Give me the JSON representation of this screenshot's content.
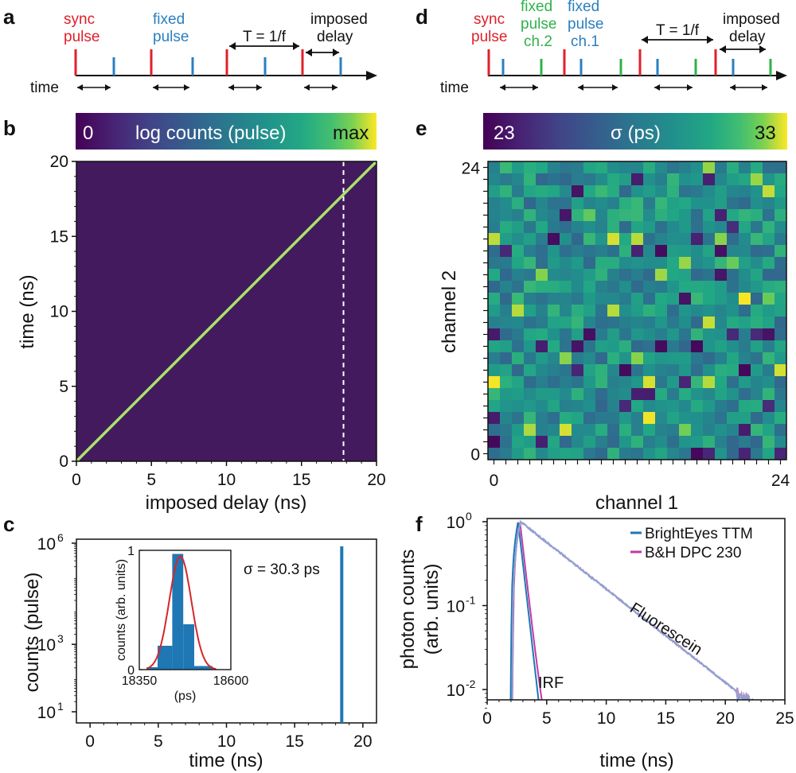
{
  "panel_labels": {
    "a": "a",
    "b": "b",
    "c": "c",
    "d": "d",
    "e": "e",
    "f": "f"
  },
  "colors": {
    "sync": "#e0202a",
    "fixed": "#2a7fbf",
    "fixed_ch2": "#2eb24a",
    "fixed_ch1": "#2a7fbf",
    "heatmap_bg": "#441a5e",
    "trace": "#a8e36a",
    "hist": "#1f77b4",
    "fit": "#d62728",
    "bright_eyes": "#1f77b4",
    "bh": "#c03aa5"
  },
  "panel_a": {
    "sync_label": "sync\npulse",
    "fixed_label": "fixed\npulse",
    "period_label": "T = 1/f",
    "delay_label": "imposed\ndelay",
    "time_label": "time"
  },
  "panel_d": {
    "sync_label": "sync\npulse",
    "ch2_label": "fixed\npulse\nch.2",
    "ch1_label": "fixed\npulse\nch.1",
    "period_label": "T = 1/f",
    "delay_label": "imposed\ndelay",
    "time_label": "time"
  },
  "chart_data": [
    {
      "panel": "b",
      "type": "heatmap",
      "colorbar": {
        "label": "log counts (pulse)",
        "min_label": "0",
        "max_label": "max"
      },
      "xlabel": "imposed delay (ns)",
      "ylabel": "time (ns)",
      "xlim": [
        0,
        20
      ],
      "ylim": [
        0,
        20
      ],
      "xticks": [
        0,
        5,
        10,
        15,
        20
      ],
      "yticks": [
        0,
        5,
        10,
        15,
        20
      ],
      "trace": {
        "x": [
          0,
          20
        ],
        "y": [
          0,
          20
        ]
      },
      "marker_x": 17.8
    },
    {
      "panel": "c",
      "type": "bar",
      "xlabel": "time (ns)",
      "ylabel": "counts (pulse)",
      "xlim": [
        -1,
        21
      ],
      "xticks": [
        0,
        5,
        10,
        15,
        20
      ],
      "yticks": [
        {
          "value": 10,
          "base": "10",
          "exp": "1"
        },
        {
          "value": 1000,
          "base": "10",
          "exp": "3"
        },
        {
          "value": 1000000,
          "base": "10",
          "exp": "6"
        }
      ],
      "yscale": "log",
      "peak_x": 18.45,
      "peak_value": 1000000,
      "annotation": "σ = 30.3 ps",
      "inset": {
        "type": "bar",
        "xlabel": "(ps)",
        "ylabel": "counts (arb. units)",
        "xticks": [
          "18350",
          "18600"
        ],
        "yticks": [
          "0",
          "1"
        ],
        "xlim": [
          18350,
          18600
        ],
        "ylim": [
          0,
          1
        ],
        "bins": [
          {
            "x0": 18370,
            "x1": 18400,
            "value": 0.02
          },
          {
            "x0": 18400,
            "x1": 18440,
            "value": 0.2
          },
          {
            "x0": 18440,
            "x1": 18470,
            "value": 0.97
          },
          {
            "x0": 18470,
            "x1": 18500,
            "value": 0.38
          },
          {
            "x0": 18500,
            "x1": 18550,
            "value": 0.03
          }
        ],
        "fit": {
          "mu": 18462,
          "sigma": 30.3,
          "amp": 0.95
        }
      }
    },
    {
      "panel": "e",
      "type": "heatmap",
      "colorbar": {
        "label": "σ (ps)",
        "min_label": "23",
        "max_label": "33"
      },
      "xlabel": "channel 1",
      "ylabel": "channel 2",
      "xticks": [
        "0",
        "24"
      ],
      "yticks": [
        "0",
        "24"
      ],
      "size": 25,
      "vmin": 23,
      "vmax": 33
    },
    {
      "panel": "f",
      "type": "line",
      "xlabel": "time (ns)",
      "ylabel": "photon counts\n(arb. units)",
      "xlim": [
        0,
        25
      ],
      "xticks": [
        0,
        5,
        10,
        15,
        20,
        25
      ],
      "yscale": "log",
      "yticks": [
        {
          "value": 0.01,
          "base": "10",
          "exp": "-2"
        },
        {
          "value": 0.1,
          "base": "10",
          "exp": "-1"
        },
        {
          "value": 1,
          "base": "10",
          "exp": "0"
        }
      ],
      "series": [
        {
          "name": "BrightEyes TTM",
          "color": "#1f77b4"
        },
        {
          "name": "B&H DPC 230",
          "color": "#c03aa5"
        }
      ],
      "annotations": {
        "fluorescein": "Fluorescein",
        "irf": "IRF"
      },
      "legend": "top-right"
    }
  ]
}
